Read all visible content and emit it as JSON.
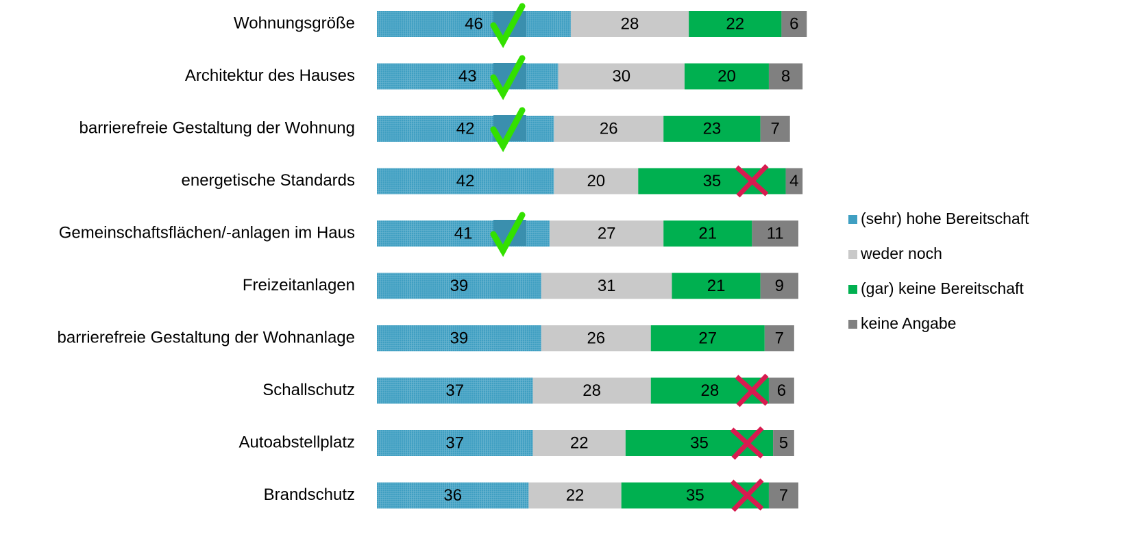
{
  "chart_data": {
    "type": "stacked-bar-horizontal",
    "categories": [
      "Wohnungsgröße",
      "Architektur des Hauses",
      "barrierefreie Gestaltung der Wohnung",
      "energetische Standards",
      "Gemeinschaftsflächen/-anlagen im  Haus",
      "Freizeitanlagen",
      "barrierefreie Gestaltung der Wohnanlage",
      "Schallschutz",
      "Autoabstellplatz",
      "Brandschutz"
    ],
    "series": [
      {
        "name": "(sehr) hohe Bereitschaft",
        "color": "#3f9fc2",
        "label_color": "#ffffff",
        "values": [
          46,
          43,
          42,
          42,
          41,
          39,
          39,
          37,
          37,
          36
        ]
      },
      {
        "name": "weder noch",
        "color": "#c9c9c9",
        "label_color": "#000000",
        "values": [
          28,
          30,
          26,
          20,
          27,
          31,
          26,
          28,
          22,
          22
        ]
      },
      {
        "name": "(gar) keine Bereitschaft",
        "color": "#00b050",
        "label_color": "#ffffff",
        "values": [
          22,
          20,
          23,
          35,
          21,
          21,
          27,
          28,
          35,
          35
        ]
      },
      {
        "name": "keine Angabe",
        "color": "#808080",
        "label_color": "#ffffff",
        "values": [
          6,
          8,
          7,
          4,
          11,
          9,
          7,
          6,
          5,
          7
        ]
      }
    ]
  }
}
